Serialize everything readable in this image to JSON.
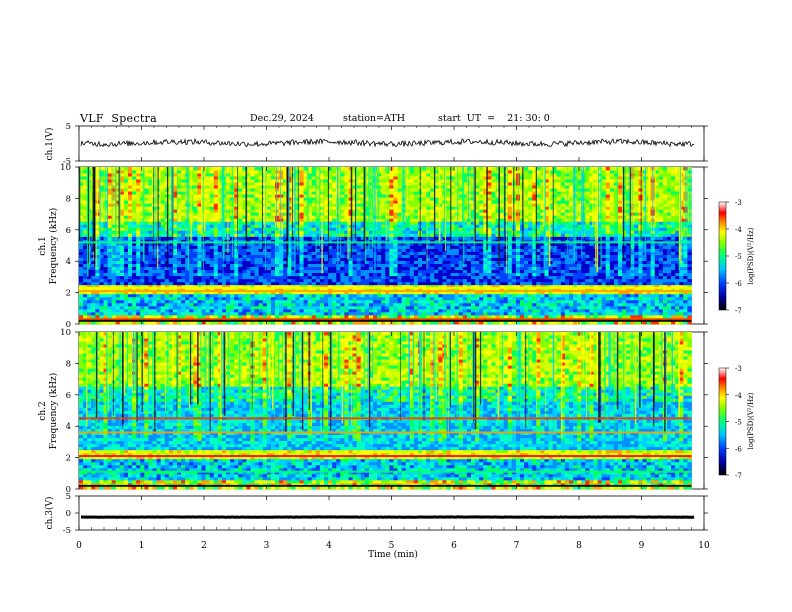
{
  "header": {
    "title": "VLF  Spectra",
    "date": "Dec.29, 2024",
    "station": "station=ATH",
    "start": "start  UT  =    21: 30: 0"
  },
  "chart_data": [
    {
      "type": "line",
      "name": "ch1-waveform",
      "ylabel": "ch.1(V)",
      "ylim": [
        -5,
        5
      ],
      "yticks": [
        "5",
        "-5"
      ],
      "xlim": [
        0,
        10
      ],
      "baseline": 0.2,
      "amplitude": 0.8
    },
    {
      "type": "heatmap",
      "name": "ch1-spectrogram",
      "channel_label": "ch.1",
      "ylabel": "Frequency  (kHz)",
      "ylim": [
        0,
        10
      ],
      "yticks": [
        "0",
        "2",
        "4",
        "6",
        "8",
        "10"
      ],
      "xlim": [
        0,
        9.8
      ],
      "colorbar": {
        "label": "log(PSD)(V²/Hz)",
        "range": [
          -7,
          -3
        ],
        "ticks": [
          "-3",
          "-4",
          "-5",
          "-6",
          "-7"
        ]
      }
    },
    {
      "type": "heatmap",
      "name": "ch2-spectrogram",
      "channel_label": "ch.2",
      "ylabel": "Frequency  (kHz)",
      "ylim": [
        0,
        10
      ],
      "yticks": [
        "0",
        "2",
        "4",
        "6",
        "8",
        "10"
      ],
      "xlim": [
        0,
        9.8
      ],
      "colorbar": {
        "label": "log(PSD)(V²/Hz)",
        "range": [
          -7,
          -3
        ],
        "ticks": [
          "-3",
          "-4",
          "-5",
          "-6",
          "-7"
        ]
      }
    },
    {
      "type": "line",
      "name": "ch3-waveform",
      "ylabel": "ch.3(V)",
      "ylim": [
        -5,
        5
      ],
      "yticks": [
        "5",
        "0",
        "-5"
      ],
      "xlim": [
        0,
        10
      ],
      "baseline": -1.2,
      "amplitude": 0.05
    }
  ],
  "x_axis": {
    "label": "Time  (min)",
    "range": [
      0,
      10
    ],
    "ticks": [
      "0",
      "1",
      "2",
      "3",
      "4",
      "5",
      "6",
      "7",
      "8",
      "9",
      "10"
    ]
  }
}
